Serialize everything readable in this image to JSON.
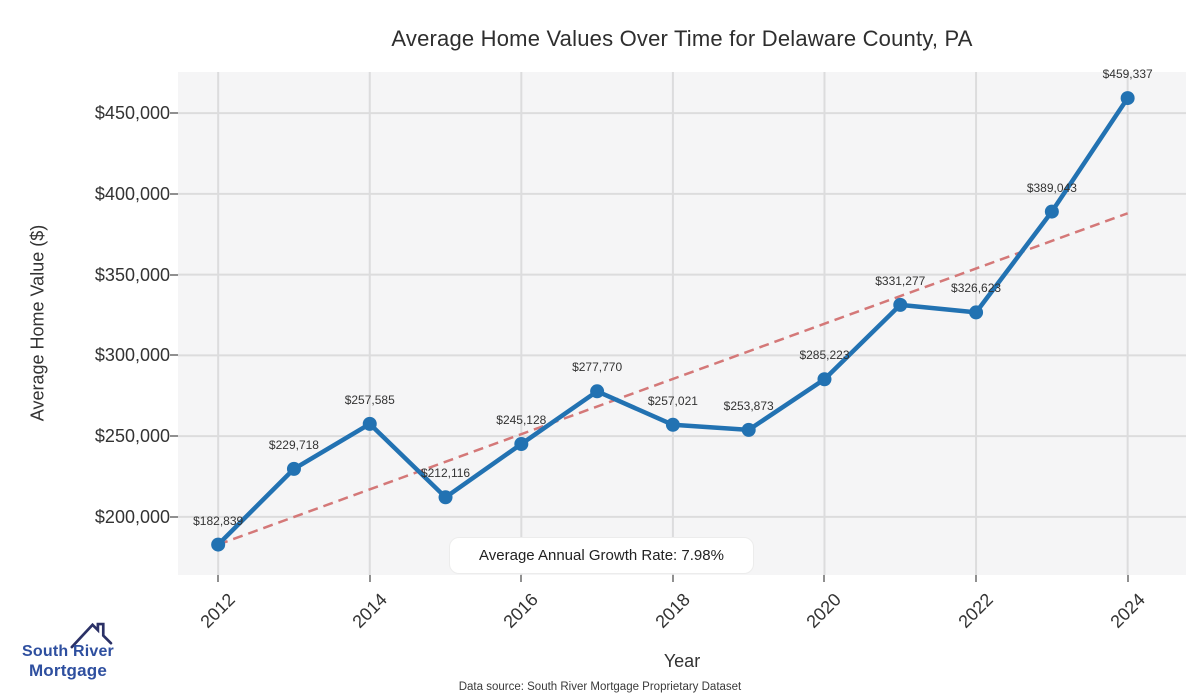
{
  "title": "Average Home Values Over Time for Delaware County, PA",
  "chart_data": {
    "type": "line",
    "title": "Average Home Values Over Time for Delaware County, PA",
    "xlabel": "Year",
    "ylabel": "Average Home Value ($)",
    "x": [
      2012,
      2013,
      2014,
      2015,
      2016,
      2017,
      2018,
      2019,
      2020,
      2021,
      2022,
      2023,
      2024
    ],
    "series": [
      {
        "name": "Average Home Value",
        "color": "#2272b2",
        "values": [
          182839,
          229718,
          257585,
          212116,
          245128,
          277770,
          257021,
          253873,
          285223,
          331277,
          326623,
          389043,
          459337
        ],
        "point_labels": [
          "$182,839",
          "$229,718",
          "$257,585",
          "$212,116",
          "$245,128",
          "$277,770",
          "$257,021",
          "$253,873",
          "$285,223",
          "$331,277",
          "$326,623",
          "$389,043",
          "$459,337"
        ]
      }
    ],
    "trend_line": {
      "name": "growth-trend",
      "style": "dashed",
      "color": "#d47878",
      "x": [
        2012,
        2024
      ],
      "values": [
        182839,
        388000
      ]
    },
    "x_ticks": {
      "values": [
        2012,
        2014,
        2016,
        2018,
        2020,
        2022,
        2024
      ],
      "labels": [
        "2012",
        "2014",
        "2016",
        "2018",
        "2020",
        "2022",
        "2024"
      ]
    },
    "y_ticks": {
      "values": [
        200000,
        250000,
        300000,
        350000,
        400000,
        450000
      ],
      "labels": [
        "$200,000",
        "$250,000",
        "$300,000",
        "$350,000",
        "$400,000",
        "$450,000"
      ]
    },
    "xlim": [
      2011.47,
      2024.77
    ],
    "ylim": [
      164000,
      475500
    ],
    "grid": true,
    "legend": false,
    "annotation": "Average Annual Growth Rate: 7.98%"
  },
  "annotation": {
    "text": "Average Annual Growth Rate: 7.98%"
  },
  "caption": "Data source: South River Mortgage Proprietary Dataset",
  "logo": {
    "line1": "South River",
    "line2": "Mortgage",
    "icon": "house-roof-icon",
    "text_color": "#2e4f9f",
    "icon_color": "#2b3166"
  },
  "colors": {
    "plot_background": "#f5f5f6",
    "grid": "#dcdcdd",
    "line": "#2272b2",
    "trend": "#d47878",
    "title_text": "#2e2e2e",
    "tick_text": "#333333"
  }
}
